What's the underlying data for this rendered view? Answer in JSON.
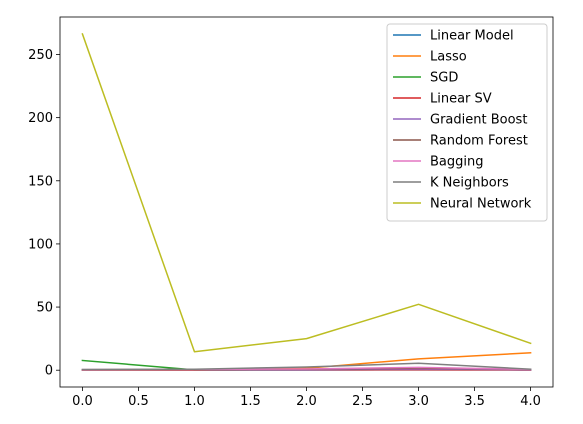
{
  "chart_data": {
    "type": "line",
    "title": "",
    "xlabel": "",
    "ylabel": "",
    "x": [
      0,
      1,
      2,
      3,
      4
    ],
    "xlim": [
      -0.2,
      4.2
    ],
    "ylim": [
      -13.3,
      279.7
    ],
    "grid": false,
    "legend_position": "upper right",
    "x_ticks": [
      {
        "value": 0.0,
        "label": "0.0"
      },
      {
        "value": 0.5,
        "label": "0.5"
      },
      {
        "value": 1.0,
        "label": "1.0"
      },
      {
        "value": 1.5,
        "label": "1.5"
      },
      {
        "value": 2.0,
        "label": "2.0"
      },
      {
        "value": 2.5,
        "label": "2.5"
      },
      {
        "value": 3.0,
        "label": "3.0"
      },
      {
        "value": 3.5,
        "label": "3.5"
      },
      {
        "value": 4.0,
        "label": "4.0"
      }
    ],
    "y_ticks": [
      {
        "value": 0,
        "label": "0"
      },
      {
        "value": 50,
        "label": "50"
      },
      {
        "value": 100,
        "label": "100"
      },
      {
        "value": 150,
        "label": "150"
      },
      {
        "value": 200,
        "label": "200"
      },
      {
        "value": 250,
        "label": "250"
      }
    ],
    "series": [
      {
        "name": "Linear Model",
        "color": "#1f77b4",
        "values": [
          0.3,
          0.2,
          0.2,
          0.3,
          0.2
        ]
      },
      {
        "name": "Lasso",
        "color": "#ff7f0e",
        "values": [
          0.3,
          0.2,
          1.5,
          9.0,
          13.8
        ]
      },
      {
        "name": "SGD",
        "color": "#2ca02c",
        "values": [
          7.7,
          0.3,
          0.5,
          0.5,
          0.4
        ]
      },
      {
        "name": "Linear SV",
        "color": "#d62728",
        "values": [
          0.2,
          0.2,
          0.3,
          0.4,
          0.2
        ]
      },
      {
        "name": "Gradient Boost",
        "color": "#9467bd",
        "values": [
          0.3,
          0.4,
          0.5,
          1.0,
          0.5
        ]
      },
      {
        "name": "Random Forest",
        "color": "#8c564b",
        "values": [
          0.4,
          0.5,
          0.8,
          1.6,
          0.7
        ]
      },
      {
        "name": "Bagging",
        "color": "#e377c2",
        "values": [
          0.5,
          0.6,
          1.0,
          2.2,
          0.6
        ]
      },
      {
        "name": "K Neighbors",
        "color": "#7f7f7f",
        "values": [
          0.6,
          0.8,
          2.5,
          5.5,
          0.8
        ]
      },
      {
        "name": "Neural Network",
        "color": "#bcbd22",
        "values": [
          266.3,
          14.6,
          25.0,
          52.2,
          21.3
        ]
      }
    ]
  }
}
